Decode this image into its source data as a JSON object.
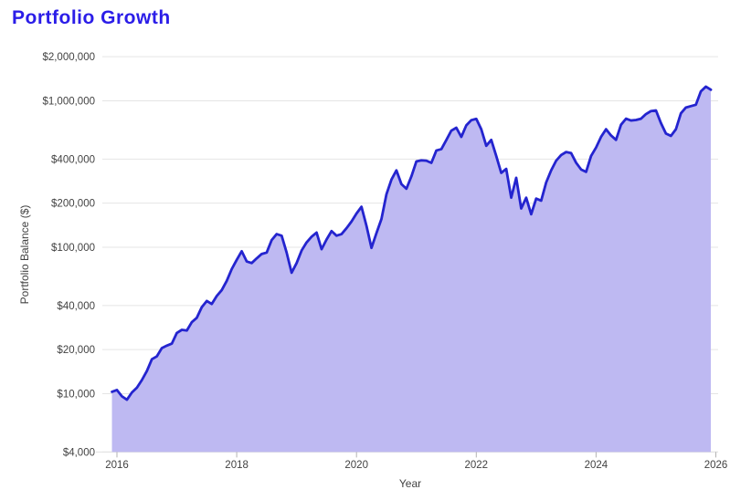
{
  "page": {
    "title": "Portfolio Growth",
    "title_color": "#2b1de8",
    "background": "#ffffff"
  },
  "chart_data": {
    "type": "area",
    "title": "Portfolio Growth",
    "xlabel": "Year",
    "ylabel": "Portfolio Balance ($)",
    "y_scale": "log",
    "grid": true,
    "legend": "none",
    "x_range": [
      2015.9,
      2026.1
    ],
    "y_range": [
      4000,
      2000000
    ],
    "colors": {
      "line": "#2424cf",
      "fill": "#beb9f2",
      "gridline": "#e5e5e5",
      "axis_line": "#e0e0e0",
      "tick_mark": "#b3b3b3",
      "tick_text": "#424242"
    },
    "y_ticks": [
      {
        "label": "$2,000,000",
        "value": 2000000
      },
      {
        "label": "$1,000,000",
        "value": 1000000
      },
      {
        "label": "$400,000",
        "value": 400000
      },
      {
        "label": "$200,000",
        "value": 200000
      },
      {
        "label": "$100,000",
        "value": 100000
      },
      {
        "label": "$40,000",
        "value": 40000
      },
      {
        "label": "$20,000",
        "value": 20000
      },
      {
        "label": "$10,000",
        "value": 10000
      },
      {
        "label": "$4,000",
        "value": 4000
      }
    ],
    "x_ticks": [
      {
        "label": "2016",
        "value": 2016
      },
      {
        "label": "2018",
        "value": 2018
      },
      {
        "label": "2020",
        "value": 2020
      },
      {
        "label": "2022",
        "value": 2022
      },
      {
        "label": "2024",
        "value": 2024
      },
      {
        "label": "2026",
        "value": 2026
      }
    ],
    "series": [
      {
        "name": "Portfolio Balance",
        "start": "2015-12",
        "frequency": "monthly",
        "values": [
          10300,
          10600,
          9600,
          9100,
          10200,
          11000,
          12400,
          14300,
          17200,
          18000,
          20500,
          21300,
          22000,
          26000,
          27300,
          27000,
          30800,
          33000,
          39000,
          43000,
          41000,
          46500,
          51000,
          59000,
          71000,
          82000,
          94000,
          80000,
          78000,
          84000,
          90000,
          92000,
          112000,
          123000,
          120000,
          92000,
          67000,
          78000,
          95000,
          108000,
          118000,
          126000,
          97000,
          113000,
          129000,
          120000,
          123000,
          135000,
          150000,
          170000,
          189000,
          140000,
          99000,
          125000,
          156000,
          230000,
          290000,
          335000,
          270000,
          251000,
          305000,
          386000,
          392000,
          390000,
          377000,
          458000,
          468000,
          540000,
          626000,
          655000,
          567000,
          680000,
          738000,
          753000,
          640000,
          493000,
          541000,
          420000,
          322000,
          343000,
          218000,
          298000,
          184000,
          218000,
          168000,
          215000,
          208000,
          277000,
          335000,
          390000,
          426000,
          447000,
          440000,
          378000,
          340000,
          327000,
          420000,
          480000,
          567000,
          640000,
          580000,
          541000,
          687000,
          755000,
          734000,
          740000,
          755000,
          812000,
          851000,
          860000,
          705000,
          598000,
          576000,
          640000,
          822000,
          900000,
          920000,
          940000,
          1160000,
          1250000,
          1190000
        ]
      }
    ]
  }
}
